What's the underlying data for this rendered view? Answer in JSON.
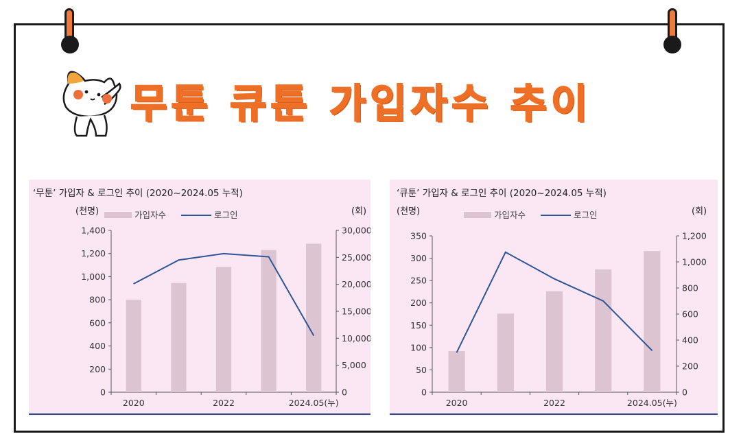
{
  "title": "무툰 큐툰 가입자수 추이",
  "chart_data": [
    {
      "type": "bar+line",
      "title": "‘무툰’ 가입자 & 로그인 추이 (2020~2024.05 누적)",
      "y_left_unit": "(천명)",
      "y_right_unit": "(회)",
      "legend": [
        "가입자수",
        "로그인"
      ],
      "x_labels": [
        "2020",
        "",
        "2022",
        "",
        "2024.05(누)"
      ],
      "y_left_ticks": [
        "0",
        "200",
        "400",
        "600",
        "800",
        "1,000",
        "1,200",
        "1,400"
      ],
      "y_right_ticks": [
        "0",
        "5,000",
        "10,000",
        "15,000",
        "20,000",
        "25,000",
        "30,000"
      ],
      "y_left_lim": [
        0,
        1400
      ],
      "y_right_lim": [
        0,
        30000
      ],
      "series": [
        {
          "name": "가입자수",
          "kind": "bar",
          "axis": "left",
          "values": [
            800,
            945,
            1085,
            1230,
            1285
          ]
        },
        {
          "name": "로그인",
          "kind": "line",
          "axis": "right",
          "values": [
            20100,
            24500,
            25700,
            25100,
            10500
          ]
        }
      ],
      "colors": {
        "bar": "#dcc5d0",
        "line": "#2e5597",
        "bg": "#fbe7f3"
      }
    },
    {
      "type": "bar+line",
      "title": "‘큐툰’ 가입자 & 로그인 추이 (2020~2024.05 누적)",
      "y_left_unit": "(천명)",
      "y_right_unit": "(회)",
      "legend": [
        "가입자수",
        "로그인"
      ],
      "x_labels": [
        "2020",
        "",
        "2022",
        "",
        "2024.05(누)"
      ],
      "y_left_ticks": [
        "0",
        "50",
        "100",
        "150",
        "200",
        "250",
        "300",
        "350"
      ],
      "y_right_ticks": [
        "0",
        "200",
        "400",
        "600",
        "800",
        "1,000",
        "1,200"
      ],
      "y_left_lim": [
        0,
        350
      ],
      "y_right_lim": [
        0,
        1200
      ],
      "series": [
        {
          "name": "가입자수",
          "kind": "bar",
          "axis": "left",
          "values": [
            92,
            176,
            226,
            275,
            316
          ]
        },
        {
          "name": "로그인",
          "kind": "line",
          "axis": "right",
          "values": [
            305,
            1075,
            870,
            700,
            320
          ]
        }
      ],
      "colors": {
        "bar": "#dcc5d0",
        "line": "#2e5597",
        "bg": "#fbe7f3"
      }
    }
  ]
}
